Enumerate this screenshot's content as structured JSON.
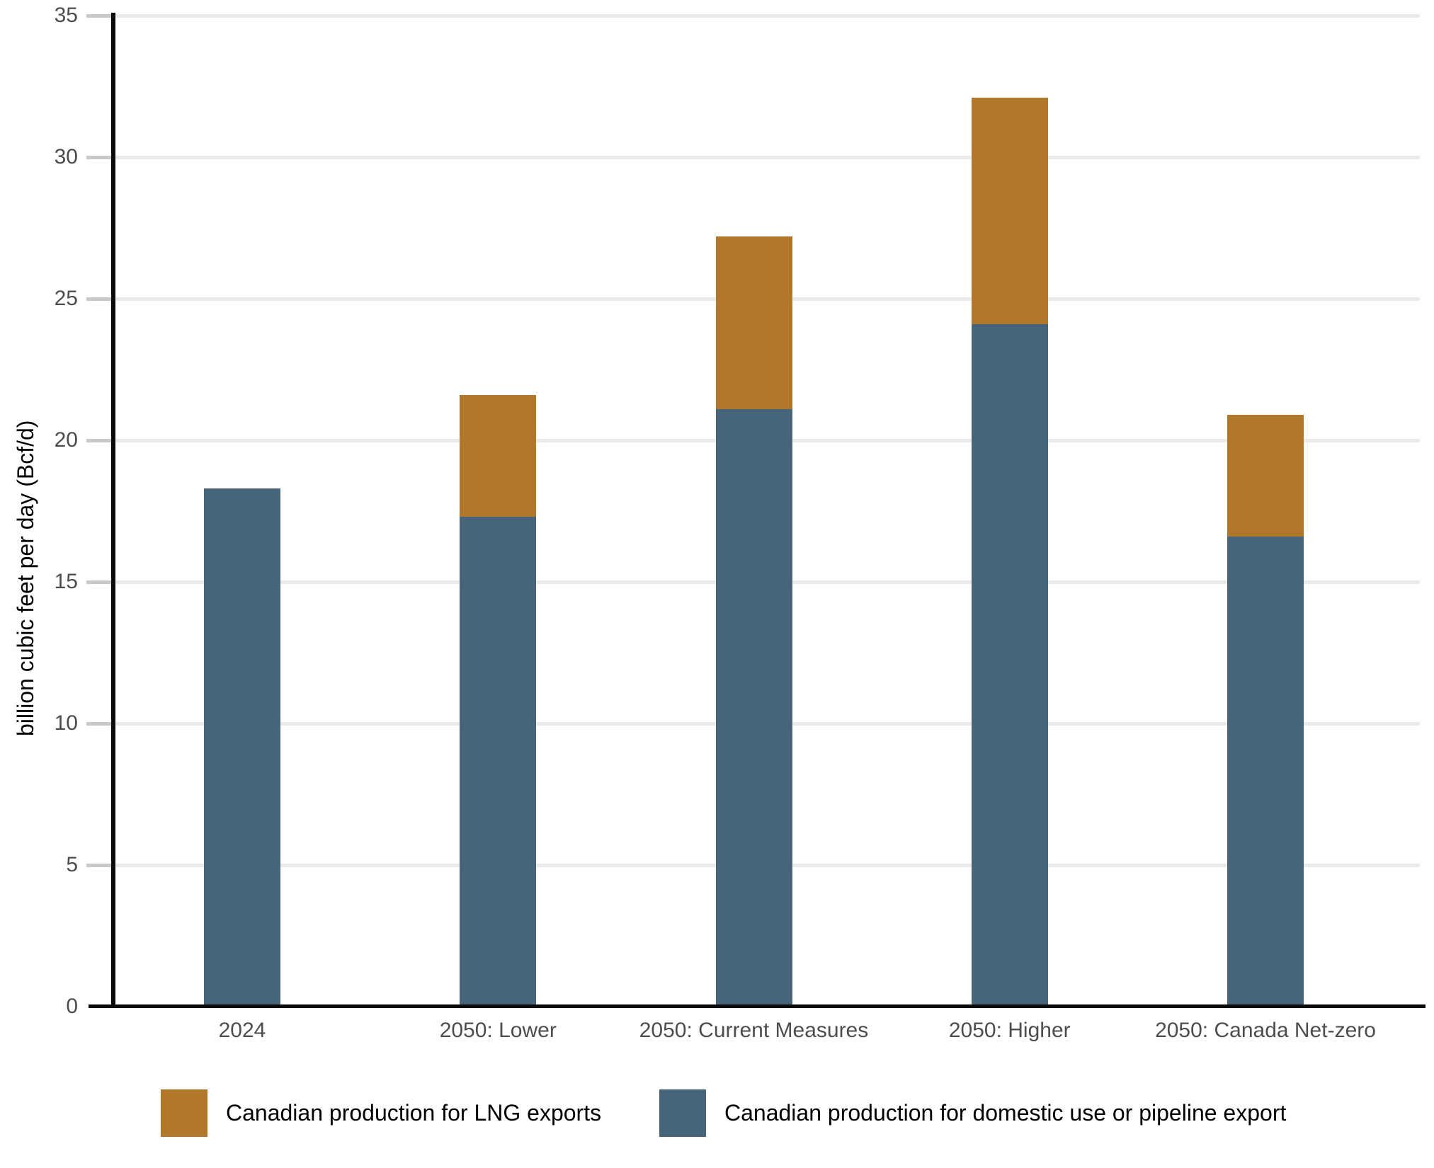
{
  "chart_data": {
    "type": "bar",
    "stacked": true,
    "title": "",
    "xlabel": "",
    "ylabel": "billion cubic feet per day (Bcf/d)",
    "ylim": [
      0,
      35
    ],
    "yticks": [
      0,
      5,
      10,
      15,
      20,
      25,
      30,
      35
    ],
    "grid": true,
    "legend_position": "bottom",
    "categories": [
      "2024",
      "2050: Lower",
      "2050: Current Measures",
      "2050: Higher",
      "2050: Canada Net-zero"
    ],
    "series": [
      {
        "name": "Canadian production for domestic use or pipeline export",
        "color": "#476579",
        "values": [
          18.3,
          17.3,
          21.1,
          24.1,
          16.6
        ]
      },
      {
        "name": "Canadian production for LNG exports",
        "color": "#B1772A",
        "values": [
          0,
          4.3,
          6.1,
          8.0,
          4.3
        ]
      }
    ],
    "totals": [
      18.3,
      21.6,
      27.2,
      32.1,
      20.9
    ],
    "legend": [
      {
        "label": "Canadian production for LNG exports",
        "color": "#B1772A"
      },
      {
        "label": "Canadian production for domestic use or pipeline export",
        "color": "#476579"
      }
    ]
  },
  "colors": {
    "background": "#ffffff",
    "gridline": "#ebebeb",
    "tick_mark": "#c8c8c8",
    "axis_line": "#0a0a0a",
    "tick_label": "#4d4d4d",
    "text": "#000000"
  }
}
